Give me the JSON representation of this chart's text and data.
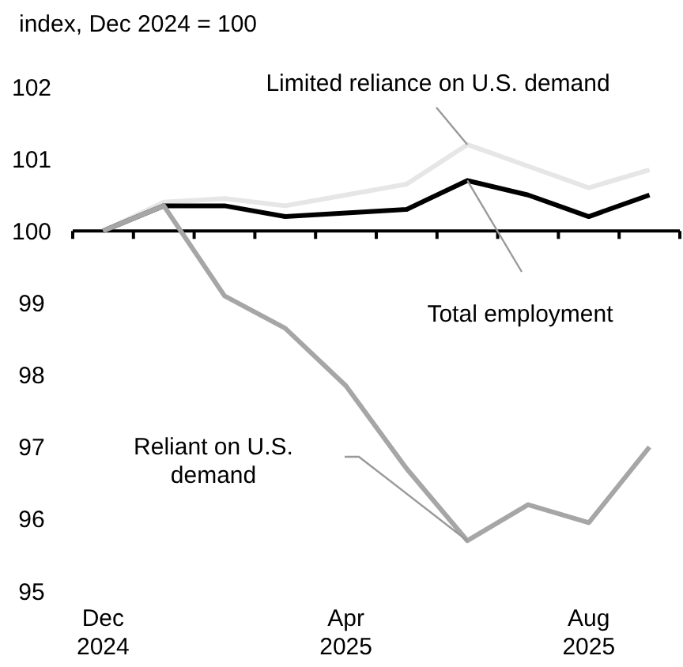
{
  "chart_data": {
    "type": "line",
    "title": "index, Dec 2024 = 100",
    "categories": [
      "Dec\n2024",
      null,
      null,
      null,
      "Apr\n2025",
      null,
      null,
      null,
      "Aug\n2025",
      null
    ],
    "series": [
      {
        "name": "Limited reliance on U.S. demand",
        "color": "#e6e6e6",
        "values": [
          100,
          100.4,
          100.45,
          100.35,
          100.5,
          100.65,
          101.2,
          100.9,
          100.6,
          100.85
        ]
      },
      {
        "name": "Total employment",
        "color": "#000000",
        "values": [
          100,
          100.35,
          100.35,
          100.2,
          100.25,
          100.3,
          100.7,
          100.5,
          100.2,
          100.5
        ]
      },
      {
        "name": "Reliant on U.S. demand",
        "color": "#a6a6a6",
        "values": [
          100,
          100.35,
          99.1,
          98.65,
          97.85,
          96.7,
          95.7,
          96.2,
          95.95,
          97.0
        ]
      }
    ],
    "ylim": [
      95,
      102
    ],
    "yticks": [
      95,
      96,
      97,
      98,
      99,
      100,
      101,
      102
    ],
    "ref_lines": [
      {
        "axis": "y",
        "value": 100,
        "color": "#000000"
      }
    ],
    "marker": "none",
    "line_style": "solid"
  }
}
